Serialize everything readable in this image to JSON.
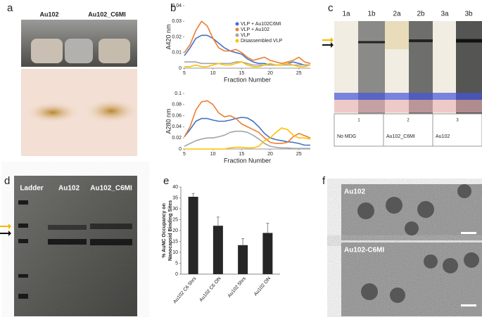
{
  "panels": [
    "a",
    "b",
    "c",
    "d",
    "e",
    "f"
  ],
  "panel_a": {
    "labels": [
      "Au102",
      "Au102_C6MI"
    ]
  },
  "panel_c": {
    "lanes": [
      "1a",
      "1b",
      "2a",
      "2b",
      "3a",
      "3b"
    ],
    "numbers": [
      "1",
      "2",
      "3"
    ],
    "conditions": [
      "No MDG",
      "Au102_C6MI",
      "Au102"
    ]
  },
  "panel_d": {
    "labels": [
      "Ladder",
      "Au102",
      "Au102_C6MI"
    ]
  },
  "panel_f": {
    "labels": [
      "Au102",
      "Au102-C6MI"
    ]
  },
  "chart_data": [
    {
      "type": "line",
      "ylabel": "A420 nm",
      "xlabel": "Fraction Number",
      "legend": "top-right",
      "x": [
        5,
        6,
        7,
        8,
        9,
        10,
        11,
        12,
        13,
        14,
        15,
        16,
        17,
        18,
        19,
        20,
        21,
        22,
        23,
        24,
        25,
        26,
        27
      ],
      "xlim": [
        5,
        27
      ],
      "xticks": [
        5,
        10,
        15,
        20,
        25
      ],
      "ylim": [
        0,
        0.04
      ],
      "yticks": [
        0,
        0.01,
        0.02,
        0.03,
        0.04
      ],
      "series": [
        {
          "name": "VLP + Au102C6MI",
          "color": "#4472c4",
          "values": [
            0.008,
            0.013,
            0.019,
            0.021,
            0.021,
            0.019,
            0.016,
            0.013,
            0.011,
            0.01,
            0.009,
            0.006,
            0.004,
            0.003,
            0.003,
            0.002,
            0.002,
            0.002,
            0.003,
            0.004,
            0.003,
            0.002,
            0.002
          ]
        },
        {
          "name": "VLP + Au102",
          "color": "#ed7d31",
          "values": [
            0.01,
            0.015,
            0.024,
            0.03,
            0.027,
            0.019,
            0.013,
            0.011,
            0.011,
            0.012,
            0.01,
            0.007,
            0.005,
            0.006,
            0.007,
            0.005,
            0.004,
            0.003,
            0.004,
            0.005,
            0.007,
            0.004,
            0.003
          ]
        },
        {
          "name": "VLP",
          "color": "#a5a5a5",
          "values": [
            0.004,
            0.004,
            0.004,
            0.003,
            0.003,
            0.003,
            0.003,
            0.003,
            0.003,
            0.004,
            0.004,
            0.003,
            0.002,
            0.002,
            0.002,
            0.002,
            0.002,
            0.002,
            0.002,
            0.002,
            0.002,
            0.002,
            0.002
          ]
        },
        {
          "name": "Disassembled VLP",
          "color": "#ffc000",
          "values": [
            0.001,
            0.001,
            0.002,
            0.001,
            0.001,
            0.002,
            0.003,
            0.002,
            0.002,
            0.003,
            0.004,
            0.002,
            0.001,
            0.001,
            0.002,
            0.003,
            0.002,
            0.002,
            0.003,
            0.002,
            0.001,
            0.001,
            0.002
          ]
        }
      ]
    },
    {
      "type": "line",
      "ylabel": "A280 nm",
      "xlabel": "Fraction Number",
      "x": [
        5,
        6,
        7,
        8,
        9,
        10,
        11,
        12,
        13,
        14,
        15,
        16,
        17,
        18,
        19,
        20,
        21,
        22,
        23,
        24,
        25,
        26,
        27
      ],
      "xlim": [
        5,
        27
      ],
      "xticks": [
        5,
        10,
        15,
        20,
        25
      ],
      "ylim": [
        0,
        0.1
      ],
      "yticks": [
        0,
        0.02,
        0.04,
        0.06,
        0.08,
        0.1
      ],
      "series": [
        {
          "color": "#4472c4",
          "values": [
            0.022,
            0.035,
            0.05,
            0.055,
            0.055,
            0.052,
            0.05,
            0.05,
            0.052,
            0.055,
            0.057,
            0.056,
            0.05,
            0.04,
            0.028,
            0.02,
            0.017,
            0.015,
            0.013,
            0.012,
            0.01,
            0.007,
            0.007
          ]
        },
        {
          "color": "#ed7d31",
          "values": [
            0.022,
            0.04,
            0.07,
            0.085,
            0.087,
            0.08,
            0.065,
            0.058,
            0.06,
            0.055,
            0.045,
            0.04,
            0.035,
            0.03,
            0.02,
            0.012,
            0.01,
            0.01,
            0.012,
            0.022,
            0.028,
            0.024,
            0.02
          ]
        },
        {
          "color": "#a5a5a5",
          "values": [
            0.005,
            0.01,
            0.015,
            0.018,
            0.02,
            0.02,
            0.022,
            0.025,
            0.03,
            0.032,
            0.032,
            0.03,
            0.025,
            0.018,
            0.01,
            0.005,
            0.003,
            0.002,
            0.002,
            0.001,
            0.001,
            0.001,
            0.001
          ]
        },
        {
          "color": "#ffc000",
          "values": [
            0,
            0,
            0,
            0,
            0,
            0,
            0,
            0,
            0.002,
            0.003,
            0.003,
            0.002,
            0.002,
            0.005,
            0.015,
            0.02,
            0.03,
            0.038,
            0.035,
            0.025,
            0.02,
            0.02,
            0.018
          ]
        }
      ]
    },
    {
      "type": "bar",
      "ylabel": [
        "% AuNC Occupancy on",
        "Nanocapsid Binding Sites"
      ],
      "categories": [
        "Au102 C6 5hrs",
        "Au102 C6 ON",
        "Au102 5hrs",
        "Au102 ON"
      ],
      "values": [
        35.5,
        22.2,
        13.3,
        18.9
      ],
      "errors": [
        1.5,
        4,
        3,
        4.5
      ],
      "color": "#262626",
      "ylim": [
        0,
        40
      ],
      "yticks": [
        0,
        5,
        10,
        15,
        20,
        25,
        30,
        35,
        40
      ]
    }
  ]
}
